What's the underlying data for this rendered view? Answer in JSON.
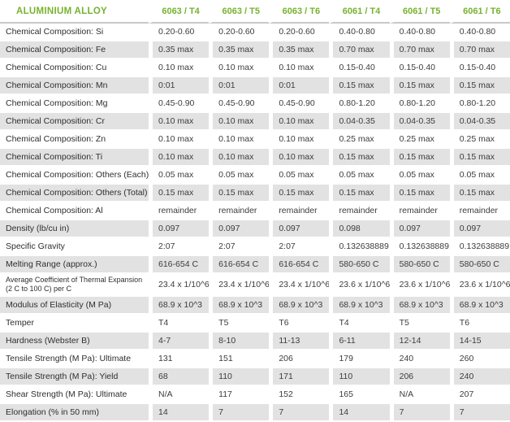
{
  "chart_data": {
    "type": "table",
    "title": "ALUMINIUM ALLOY",
    "columns": [
      "6063 / T4",
      "6063 / T5",
      "6063 / T6",
      "6061 / T4",
      "6061 / T5",
      "6061 / T6"
    ],
    "rows": [
      {
        "label": "Chemical Composition: Si",
        "values": [
          "0.20-0.60",
          "0.20-0.60",
          "0.20-0.60",
          "0.40-0.80",
          "0.40-0.80",
          "0.40-0.80"
        ]
      },
      {
        "label": "Chemical Composition: Fe",
        "values": [
          "0.35 max",
          "0.35 max",
          "0.35 max",
          "0.70 max",
          "0.70 max",
          "0.70 max"
        ]
      },
      {
        "label": "Chemical Composition: Cu",
        "values": [
          "0.10 max",
          "0.10 max",
          "0.10 max",
          "0.15-0.40",
          "0.15-0.40",
          "0.15-0.40"
        ]
      },
      {
        "label": "Chemical Composition: Mn",
        "values": [
          "0:01",
          "0:01",
          "0:01",
          "0.15 max",
          "0.15 max",
          "0.15 max"
        ]
      },
      {
        "label": "Chemical Composition: Mg",
        "values": [
          "0.45-0.90",
          "0.45-0.90",
          "0.45-0.90",
          "0.80-1.20",
          "0.80-1.20",
          "0.80-1.20"
        ]
      },
      {
        "label": "Chemical Composition: Cr",
        "values": [
          "0.10 max",
          "0.10 max",
          "0.10 max",
          "0.04-0.35",
          "0.04-0.35",
          "0.04-0.35"
        ]
      },
      {
        "label": "Chemical Composition: Zn",
        "values": [
          "0.10 max",
          "0.10 max",
          "0.10 max",
          "0.25 max",
          "0.25 max",
          "0.25 max"
        ]
      },
      {
        "label": "Chemical Composition: Ti",
        "values": [
          "0.10 max",
          "0.10 max",
          "0.10 max",
          "0.15 max",
          "0.15 max",
          "0.15 max"
        ]
      },
      {
        "label": "Chemical Composition: Others (Each)",
        "values": [
          "0.05 max",
          "0.05 max",
          "0.05 max",
          "0.05 max",
          "0.05 max",
          "0.05 max"
        ]
      },
      {
        "label": "Chemical Composition: Others (Total)",
        "values": [
          "0.15 max",
          "0.15 max",
          "0.15 max",
          "0.15 max",
          "0.15 max",
          "0.15 max"
        ]
      },
      {
        "label": "Chemical Composition: Al",
        "values": [
          "remainder",
          "remainder",
          "remainder",
          "remainder",
          "remainder",
          "remainder"
        ]
      },
      {
        "label": "Density (lb/cu in)",
        "values": [
          "0.097",
          "0.097",
          "0.097",
          "0.098",
          "0.097",
          "0.097"
        ]
      },
      {
        "label": "Specific Gravity",
        "values": [
          "2:07",
          "2:07",
          "2:07",
          "0.132638889",
          "0.132638889",
          "0.132638889"
        ]
      },
      {
        "label": "Melting Range (approx.)",
        "values": [
          "616-654 C",
          "616-654 C",
          "616-654 C",
          "580-650 C",
          "580-650 C",
          "580-650 C"
        ]
      },
      {
        "label": "Average Coefficient of Thermal Expansion (2 C to 100 C) per C",
        "two_line": true,
        "values": [
          "23.4 x 1/10^6",
          "23.4 x 1/10^6",
          "23.4 x 1/10^6",
          "23.6 x 1/10^6",
          "23.6 x 1/10^6",
          "23.6 x 1/10^6"
        ]
      },
      {
        "label": "Modulus of Elasticity (M Pa)",
        "values": [
          "68.9 x 10^3",
          "68.9 x 10^3",
          "68.9 x 10^3",
          "68.9 x 10^3",
          "68.9 x 10^3",
          "68.9 x 10^3"
        ]
      },
      {
        "label": "Temper",
        "values": [
          "T4",
          "T5",
          "T6",
          "T4",
          "T5",
          "T6"
        ]
      },
      {
        "label": "Hardness (Webster B)",
        "values": [
          "4-7",
          "8-10",
          "11-13",
          "6-11",
          "12-14",
          "14-15"
        ]
      },
      {
        "label": "Tensile Strength (M Pa): Ultimate",
        "values": [
          "131",
          "151",
          "206",
          "179",
          "240",
          "260"
        ]
      },
      {
        "label": "Tensile Strength (M Pa): Yield",
        "values": [
          "68",
          "110",
          "171",
          "110",
          "206",
          "240"
        ]
      },
      {
        "label": "Shear Strength (M Pa): Ultimate",
        "values": [
          "N/A",
          "117",
          "152",
          "165",
          "N/A",
          "207"
        ]
      },
      {
        "label": "Elongation (% in 50 mm)",
        "values": [
          "14",
          "7",
          "7",
          "14",
          "7",
          "7"
        ]
      }
    ],
    "layout": {
      "striped": true,
      "stripe_start": "second_row",
      "grid": "white-gaps-between-columns"
    }
  },
  "colors": {
    "accent_green": "#76b22e",
    "stripe_gray": "#e2e2e2",
    "header_border_gray": "#c9c9c9",
    "label_text": "#2e2e2e",
    "value_text": "#3c3c3c",
    "background": "#ffffff"
  }
}
